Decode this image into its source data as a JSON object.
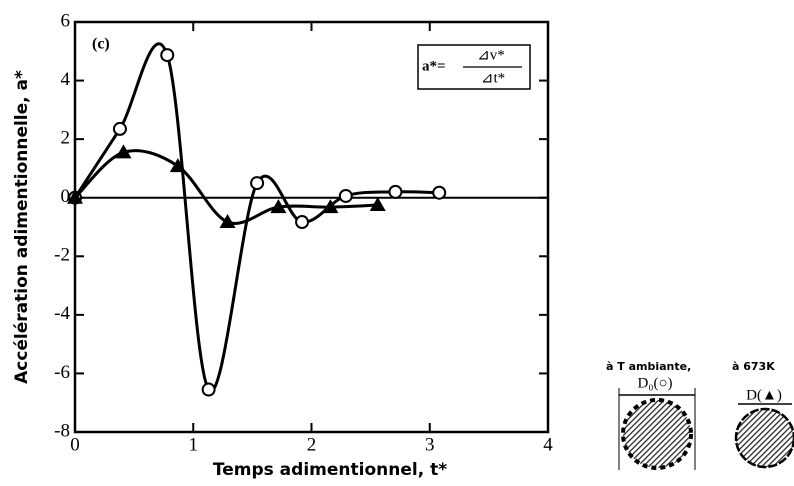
{
  "chart_data": {
    "type": "line",
    "xlabel": "Temps adimentionnel, t*",
    "ylabel": "Accélération adimentionnelle, a*",
    "xlim": [
      0,
      4
    ],
    "ylim": [
      -8,
      6
    ],
    "xticks": [
      0,
      1,
      2,
      3,
      4
    ],
    "yticks": [
      -8,
      -6,
      -4,
      -2,
      0,
      2,
      4,
      6
    ],
    "hline": 0,
    "annotations": {
      "panel": "(c)",
      "formula_lhs": "a*=",
      "formula_num": "⊿v*",
      "formula_den": "⊿t*"
    },
    "series": [
      {
        "name": "D₀(○)",
        "marker": "circle",
        "color": "#000",
        "x": [
          0,
          0.38,
          0.78,
          1.13,
          1.54,
          1.92,
          2.29,
          2.71,
          3.08
        ],
        "values": [
          0,
          2.35,
          4.87,
          -6.55,
          0.5,
          -0.83,
          0.06,
          0.2,
          0.17
        ]
      },
      {
        "name": "D(▲)",
        "marker": "triangle",
        "color": "#000",
        "x": [
          0,
          0.41,
          0.87,
          1.29,
          1.72,
          2.16,
          2.56
        ],
        "values": [
          0,
          1.55,
          1.08,
          -0.83,
          -0.32,
          -0.32,
          -0.25
        ]
      }
    ],
    "side_labels": {
      "left": "à T ambiante,",
      "right": "à 673K"
    }
  }
}
